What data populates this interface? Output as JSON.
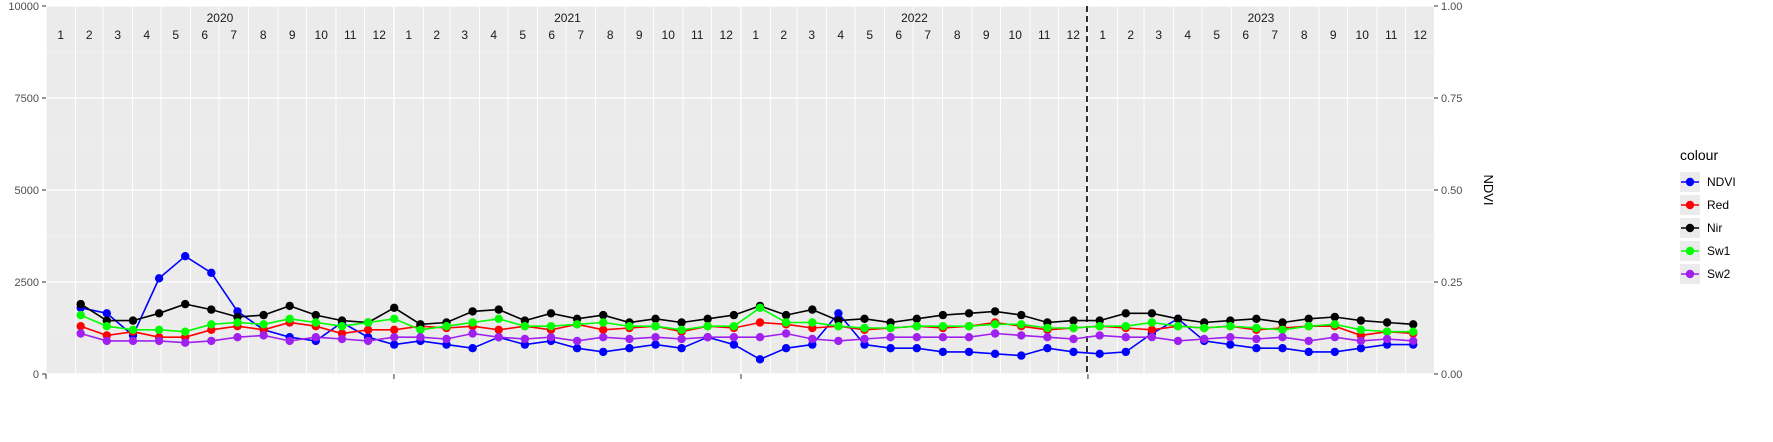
{
  "chart_data": {
    "type": "line",
    "x_start": "2020-01-01",
    "x_end": "2023-12-31",
    "years": [
      "2020",
      "2021",
      "2022",
      "2023"
    ],
    "month_labels": [
      "1",
      "2",
      "3",
      "4",
      "5",
      "6",
      "7",
      "8",
      "9",
      "10",
      "11",
      "12"
    ],
    "left_axis": {
      "ticks": [
        "0",
        "2500",
        "5000",
        "7500",
        "10000"
      ],
      "values": [
        0,
        2500,
        5000,
        7500,
        10000
      ],
      "ylim": [
        0,
        10000
      ]
    },
    "right_axis": {
      "title": "NDVI",
      "ticks": [
        "0.00",
        "0.25",
        "0.50",
        "0.75",
        "1.00"
      ],
      "values": [
        0,
        0.25,
        0.5,
        0.75,
        1.0
      ],
      "ylim": [
        0,
        1
      ]
    },
    "vline": {
      "date": "2022-12-31",
      "style": "dashed"
    },
    "legend": {
      "title": "colour",
      "position": "right"
    },
    "series": [
      {
        "name": "NDVI",
        "color": "#0000ff",
        "values": [
          1800,
          1650,
          1050,
          2600,
          3200,
          2750,
          1700,
          1200,
          1000,
          900,
          1400,
          1000,
          800,
          900,
          800,
          700,
          1000,
          800,
          900,
          700,
          600,
          700,
          800,
          700,
          1000,
          800,
          400,
          700,
          800,
          1650,
          800,
          700,
          700,
          600,
          600,
          550,
          500,
          700,
          600,
          550,
          600,
          1100,
          1500,
          900,
          800,
          700,
          700,
          600,
          600,
          700,
          800,
          800
        ]
      },
      {
        "name": "Red",
        "color": "#ff0000",
        "values": [
          1300,
          1050,
          1150,
          1000,
          1000,
          1200,
          1300,
          1200,
          1400,
          1300,
          1100,
          1200,
          1200,
          1300,
          1250,
          1300,
          1200,
          1300,
          1200,
          1350,
          1200,
          1250,
          1300,
          1150,
          1300,
          1250,
          1400,
          1350,
          1250,
          1300,
          1200,
          1250,
          1300,
          1250,
          1300,
          1400,
          1300,
          1200,
          1250,
          1300,
          1250,
          1200,
          1300,
          1250,
          1300,
          1200,
          1250,
          1300,
          1300,
          1050,
          1150,
          1100
        ]
      },
      {
        "name": "Nir",
        "color": "#000000",
        "values": [
          1900,
          1450,
          1450,
          1650,
          1900,
          1750,
          1550,
          1600,
          1850,
          1600,
          1450,
          1400,
          1800,
          1350,
          1400,
          1700,
          1750,
          1450,
          1650,
          1500,
          1600,
          1400,
          1500,
          1400,
          1500,
          1600,
          1850,
          1600,
          1750,
          1450,
          1500,
          1400,
          1500,
          1600,
          1650,
          1700,
          1600,
          1400,
          1450,
          1450,
          1650,
          1650,
          1500,
          1400,
          1450,
          1500,
          1400,
          1500,
          1550,
          1450,
          1400,
          1350
        ]
      },
      {
        "name": "Sw1",
        "color": "#00ff00",
        "values": [
          1600,
          1300,
          1200,
          1200,
          1150,
          1350,
          1400,
          1350,
          1500,
          1400,
          1300,
          1400,
          1500,
          1200,
          1300,
          1400,
          1500,
          1300,
          1300,
          1350,
          1400,
          1300,
          1300,
          1200,
          1300,
          1300,
          1800,
          1400,
          1400,
          1300,
          1250,
          1250,
          1300,
          1300,
          1300,
          1350,
          1350,
          1250,
          1250,
          1300,
          1300,
          1400,
          1300,
          1250,
          1300,
          1250,
          1200,
          1300,
          1350,
          1200,
          1150,
          1150
        ]
      },
      {
        "name": "Sw2",
        "color": "#a020f0",
        "values": [
          1100,
          900,
          900,
          900,
          850,
          900,
          1000,
          1050,
          900,
          1000,
          950,
          900,
          1000,
          1000,
          950,
          1100,
          1000,
          950,
          1000,
          900,
          1000,
          950,
          1000,
          950,
          1000,
          1000,
          1000,
          1100,
          950,
          900,
          950,
          1000,
          1000,
          1000,
          1000,
          1100,
          1050,
          1000,
          950,
          1050,
          1000,
          1000,
          900,
          950,
          1000,
          950,
          1000,
          900,
          1000,
          900,
          950,
          900
        ]
      }
    ]
  }
}
